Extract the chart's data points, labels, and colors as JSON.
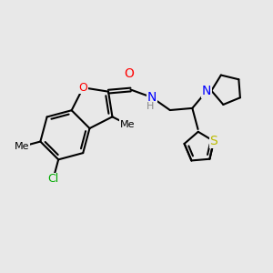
{
  "bg_color": "#e8e8e8",
  "bond_color": "#000000",
  "bond_width": 1.5,
  "atom_colors": {
    "O": "#ff0000",
    "N": "#0000ff",
    "S": "#bbbb00",
    "Cl": "#00aa00",
    "C": "#000000",
    "H": "#888888"
  },
  "font_size": 9
}
